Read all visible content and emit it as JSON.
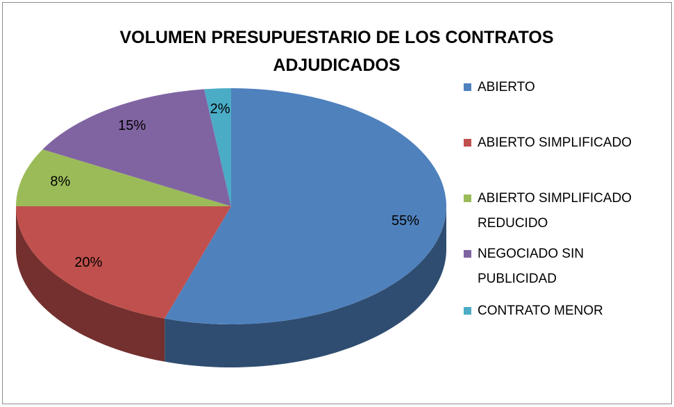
{
  "chart_data": {
    "type": "pie",
    "title": "VOLUMEN PRESUPUESTARIO DE LOS CONTRATOS ADJUDICADOS",
    "categories": [
      "ABIERTO",
      "ABIERTO SIMPLIFICADO",
      "ABIERTO SIMPLIFICADO REDUCIDO",
      "NEGOCIADO SIN PUBLICIDAD",
      "CONTRATO MENOR"
    ],
    "values": [
      55,
      20,
      8,
      15,
      2
    ],
    "value_labels": [
      "55%",
      "20%",
      "8%",
      "15%",
      "2%"
    ],
    "colors": [
      "#4f81bd",
      "#c0504d",
      "#9bbb59",
      "#8064a2",
      "#4bacc6"
    ],
    "legend": "right"
  }
}
